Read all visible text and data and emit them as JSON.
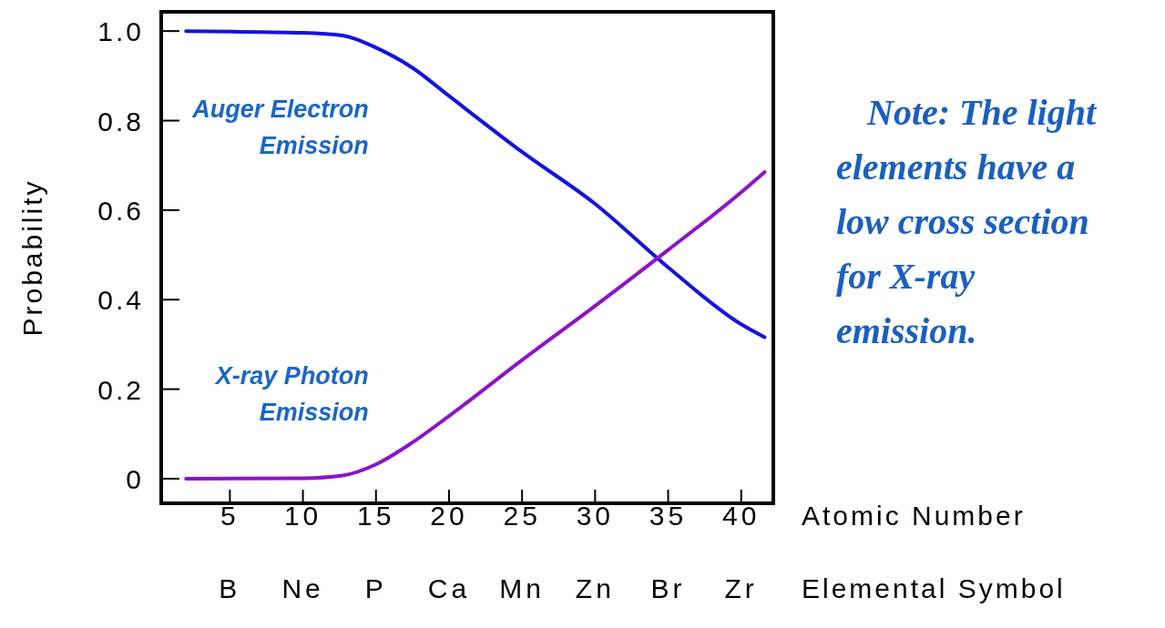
{
  "chart_data": {
    "type": "line",
    "ylabel": "Probability",
    "xlabel": "Atomic Number",
    "xlim": [
      0.3,
      42.2
    ],
    "ylim": [
      -0.055,
      1.043
    ],
    "xticks": [
      5,
      10,
      15,
      20,
      25,
      30,
      35,
      40
    ],
    "yticks": [
      {
        "value": 0,
        "label": "0"
      },
      {
        "value": 0.2,
        "label": "0.2"
      },
      {
        "value": 0.4,
        "label": "0.4"
      },
      {
        "value": 0.6,
        "label": "0.6"
      },
      {
        "value": 0.8,
        "label": "0.8"
      },
      {
        "value": 1,
        "label": "1.0"
      }
    ],
    "x": [
      2,
      10,
      12.7,
      15,
      17.5,
      20,
      25,
      30,
      35,
      40,
      41.6
    ],
    "series": [
      {
        "name": "Auger Electron Emission",
        "color": "#1414dc",
        "values": [
          1,
          0.996,
          0.99,
          0.963,
          0.918,
          0.855,
          0.73,
          0.614,
          0.472,
          0.345,
          0.316
        ]
      },
      {
        "name": "X-ray Photon Emission",
        "color": "#8c14c8",
        "values": [
          0,
          0.001,
          0.007,
          0.032,
          0.081,
          0.14,
          0.265,
          0.386,
          0.511,
          0.64,
          0.685
        ]
      }
    ],
    "line_style": "solid",
    "marker": "none",
    "grid": false,
    "annotations": [
      "Note: The light\nelements have a\nlow cross section\nfor X-ray\nemission.",
      "Elemental Symbol",
      "B",
      "Ne",
      "P",
      "Ca",
      "Mn",
      "Zn",
      "Br",
      "Zr"
    ]
  }
}
